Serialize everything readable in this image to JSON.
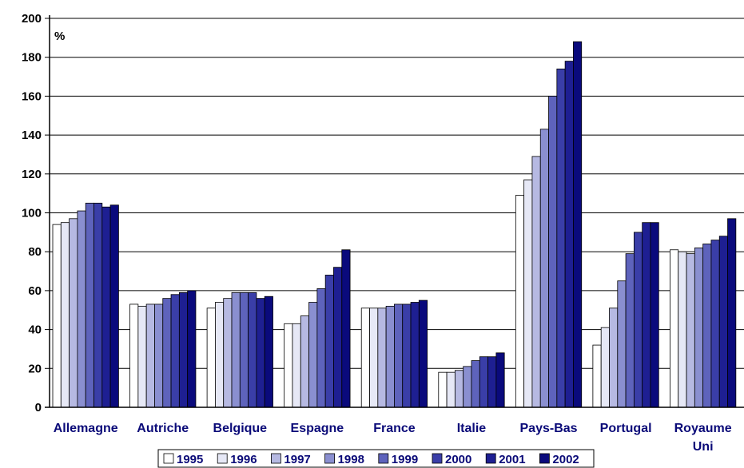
{
  "chart_data": {
    "type": "bar",
    "unit_label": "%",
    "categories": [
      "Allemagne",
      "Autriche",
      "Belgique",
      "Espagne",
      "France",
      "Italie",
      "Pays-Bas",
      "Portugal",
      "Royaume\nUni"
    ],
    "ylim": [
      0,
      200
    ],
    "yticks": [
      0,
      20,
      40,
      60,
      80,
      100,
      120,
      140,
      160,
      180,
      200
    ],
    "grid": true,
    "legend_position": "bottom",
    "series": [
      {
        "name": "1995",
        "color": "#ffffff",
        "values": [
          94,
          53,
          51,
          43,
          51,
          18,
          109,
          32,
          81
        ]
      },
      {
        "name": "1996",
        "color": "#e6e8f6",
        "values": [
          95,
          52,
          54,
          43,
          51,
          18,
          117,
          41,
          80
        ]
      },
      {
        "name": "1997",
        "color": "#b6b9e2",
        "values": [
          97,
          53,
          56,
          47,
          51,
          19,
          129,
          51,
          79
        ]
      },
      {
        "name": "1998",
        "color": "#8a8fd0",
        "values": [
          101,
          53,
          59,
          54,
          52,
          21,
          143,
          65,
          82
        ]
      },
      {
        "name": "1999",
        "color": "#5e63bc",
        "values": [
          105,
          56,
          59,
          61,
          53,
          24,
          160,
          79,
          84
        ]
      },
      {
        "name": "2000",
        "color": "#3a3ea8",
        "values": [
          105,
          58,
          59,
          68,
          53,
          26,
          174,
          90,
          86
        ]
      },
      {
        "name": "2001",
        "color": "#1e1f92",
        "values": [
          103,
          59,
          56,
          72,
          54,
          26,
          178,
          95,
          88
        ]
      },
      {
        "name": "2002",
        "color": "#0a0a7c",
        "values": [
          104,
          60,
          57,
          81,
          55,
          28,
          188,
          95,
          97
        ]
      }
    ]
  }
}
